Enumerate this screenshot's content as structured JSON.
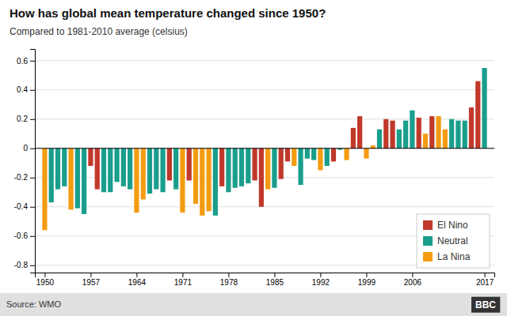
{
  "chart_data": {
    "type": "bar",
    "title": "How has global mean temperature changed since 1950?",
    "subtitle": "Compared to 1981-2010 average (celsius)",
    "annotations": [
      "Source: WMO",
      "BBC"
    ],
    "x": [
      1950,
      1951,
      1952,
      1953,
      1954,
      1955,
      1956,
      1957,
      1958,
      1959,
      1960,
      1961,
      1962,
      1963,
      1964,
      1965,
      1966,
      1967,
      1968,
      1969,
      1970,
      1971,
      1972,
      1973,
      1974,
      1975,
      1976,
      1977,
      1978,
      1979,
      1980,
      1981,
      1982,
      1983,
      1984,
      1985,
      1986,
      1987,
      1988,
      1989,
      1990,
      1991,
      1992,
      1993,
      1994,
      1995,
      1996,
      1997,
      1998,
      1999,
      2000,
      2001,
      2002,
      2003,
      2004,
      2005,
      2006,
      2007,
      2008,
      2009,
      2010,
      2011,
      2012,
      2013,
      2014,
      2015,
      2016,
      2017
    ],
    "series": [
      {
        "name": "El Nino",
        "color": "#c0392b",
        "values": [
          null,
          null,
          null,
          null,
          null,
          null,
          null,
          -0.12,
          -0.28,
          null,
          null,
          null,
          null,
          null,
          null,
          null,
          null,
          null,
          null,
          -0.22,
          null,
          null,
          -0.22,
          null,
          null,
          null,
          null,
          -0.26,
          null,
          null,
          null,
          null,
          -0.22,
          -0.4,
          null,
          null,
          -0.21,
          -0.09,
          null,
          null,
          null,
          null,
          null,
          null,
          -0.09,
          null,
          null,
          0.14,
          0.22,
          null,
          null,
          null,
          0.2,
          0.19,
          null,
          null,
          null,
          0.21,
          null,
          0.22,
          null,
          null,
          null,
          null,
          null,
          0.28,
          0.46,
          null
        ]
      },
      {
        "name": "Neutral",
        "color": "#1a9e8c",
        "values": [
          null,
          -0.37,
          -0.28,
          -0.26,
          null,
          -0.41,
          -0.45,
          null,
          null,
          -0.3,
          -0.3,
          -0.23,
          -0.26,
          -0.28,
          null,
          null,
          -0.31,
          -0.28,
          -0.3,
          null,
          -0.28,
          null,
          null,
          null,
          null,
          null,
          -0.46,
          null,
          -0.3,
          -0.27,
          -0.26,
          -0.24,
          null,
          null,
          null,
          -0.27,
          null,
          null,
          null,
          -0.25,
          -0.07,
          -0.08,
          null,
          -0.12,
          null,
          -0.01,
          null,
          null,
          null,
          null,
          null,
          0.13,
          null,
          null,
          0.13,
          0.19,
          0.26,
          null,
          null,
          null,
          null,
          null,
          0.2,
          0.19,
          0.19,
          null,
          null,
          0.55
        ]
      },
      {
        "name": "La Nina",
        "color": "#f39c12",
        "values": [
          -0.56,
          null,
          null,
          null,
          -0.42,
          null,
          null,
          null,
          null,
          null,
          null,
          null,
          null,
          null,
          -0.44,
          -0.35,
          null,
          null,
          null,
          null,
          null,
          -0.44,
          null,
          -0.38,
          -0.46,
          -0.43,
          null,
          null,
          null,
          null,
          null,
          null,
          null,
          null,
          -0.28,
          null,
          null,
          null,
          -0.12,
          null,
          null,
          null,
          -0.15,
          null,
          null,
          null,
          -0.08,
          null,
          null,
          -0.07,
          0.02,
          null,
          null,
          null,
          null,
          null,
          null,
          null,
          0.1,
          null,
          0.22,
          0.13,
          null,
          null,
          null,
          null,
          null,
          null
        ]
      }
    ],
    "xlim": [
      1948.5,
      2018.5
    ],
    "xticks": [
      1950,
      1957,
      1964,
      1971,
      1978,
      1985,
      1992,
      1999,
      2006,
      2017
    ],
    "ylim": [
      -0.85,
      0.68
    ],
    "yticks": [
      -0.8,
      -0.6,
      -0.4,
      -0.2,
      0,
      0.2,
      0.4,
      0.6
    ],
    "grid": true,
    "legend": "lower right"
  }
}
